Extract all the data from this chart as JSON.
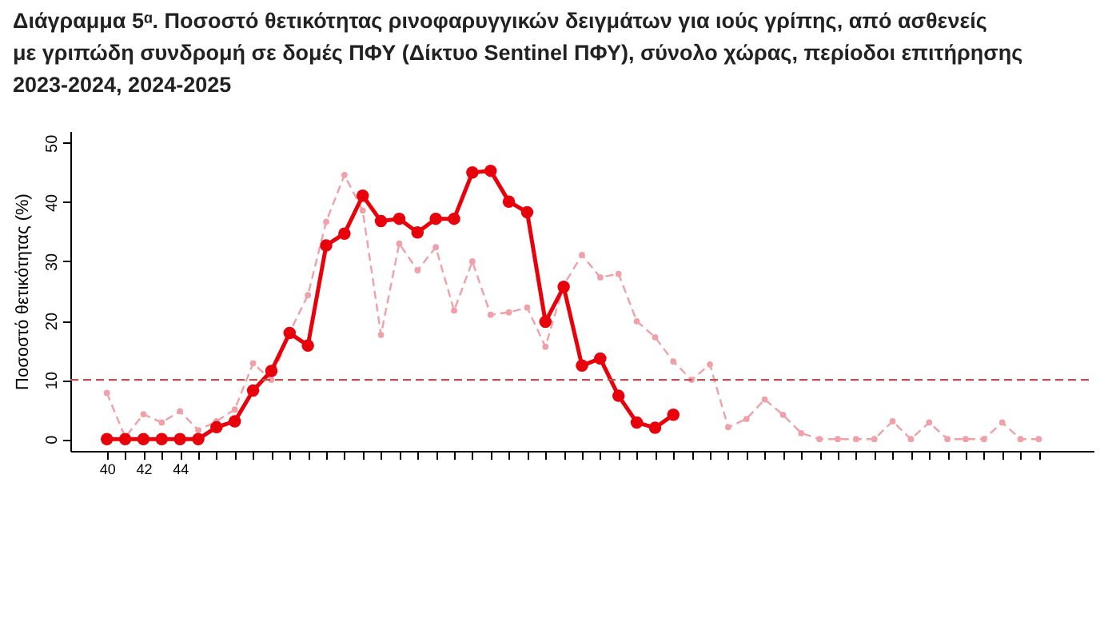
{
  "chart_data": {
    "type": "line",
    "title": "Διάγραμμα 5ᵅ. Ποσοστό θετικότητας ρινοφαρυγγικών δειγμάτων για ιούς γρίπης, από ασθενείς\nμε γριπώδη συνδρομή σε δομές ΠΦΥ (Δίκτυο Sentinel ΠΦΥ), σύνολο χώρας, περίοδοι επιτήρησης\n2023-2024, 2024-2025",
    "ylabel": "Ποσοστό θετικότητας (%)",
    "categories": [
      "40",
      null,
      "42",
      null,
      "44",
      null,
      null,
      null,
      null,
      null,
      null,
      null,
      null,
      null,
      null,
      null,
      null,
      null,
      null,
      null,
      null,
      null,
      null,
      null,
      null,
      null,
      null,
      null,
      null,
      null,
      null,
      null,
      null,
      null,
      null,
      null,
      null,
      null,
      null,
      null,
      null,
      null,
      null,
      null,
      null,
      null,
      null,
      null,
      null,
      null,
      null,
      null
    ],
    "series": [
      {
        "color": "#f0a0a8",
        "marker": "circle",
        "line_style": "dashed",
        "values": [
          7.8,
          0.3,
          4.2,
          2.8,
          4.7,
          1.5,
          3,
          5,
          12.8,
          10,
          18,
          24.3,
          36.7,
          44.6,
          38.6,
          17.6,
          33,
          28.5,
          32.4,
          21.7,
          30,
          21,
          21.4,
          22.2,
          15.6,
          26,
          31.1,
          27.3,
          27.9,
          19.9,
          17.2,
          13.1,
          10,
          12.6,
          2,
          3.4,
          6.7,
          4.1,
          1,
          0,
          0,
          0,
          0,
          3,
          0,
          2.8,
          0,
          0,
          0,
          2.8,
          0,
          0
        ]
      },
      {
        "color": "#e8000b",
        "marker": "circle",
        "line_style": "solid",
        "values": [
          0,
          0,
          0,
          0,
          0,
          0,
          2,
          3,
          8.2,
          11.5,
          17.9,
          15.8,
          32.7,
          34.7,
          41.1,
          36.8,
          37.2,
          34.9,
          37.2,
          37.2,
          45,
          45.3,
          40.1,
          38.3,
          19.8,
          25.7,
          12.4,
          13.6,
          7.3,
          2.8,
          1.9,
          4.1,
          null,
          null,
          null,
          null,
          null,
          null,
          null,
          null,
          null,
          null,
          null,
          null,
          null,
          null,
          null,
          null,
          null,
          null,
          null,
          null
        ]
      }
    ],
    "ylim": [
      -2,
      52
    ],
    "yticks": [
      0,
      10,
      20,
      30,
      40,
      50
    ],
    "ref_lines": [
      {
        "axis": "y",
        "value": 10,
        "color": "#c0504d",
        "line_style": "dashed"
      }
    ],
    "grid": false
  }
}
